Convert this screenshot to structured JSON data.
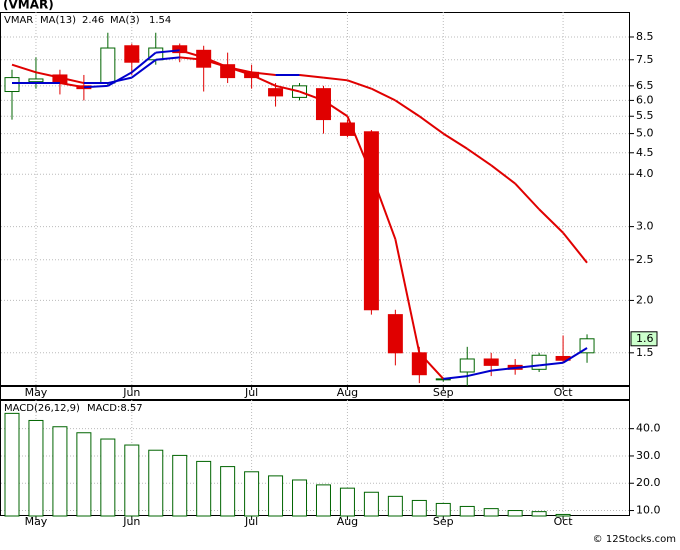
{
  "chart_data": [
    {
      "type": "candlestick",
      "title": "(VMAR)",
      "legend": [
        "VMAR",
        "MA(13)",
        "2.46",
        "MA(3)",
        "1.54"
      ],
      "categories": [
        null,
        "May",
        null,
        null,
        null,
        "Jun",
        null,
        null,
        null,
        null,
        "Jul",
        null,
        null,
        null,
        "Aug",
        null,
        null,
        null,
        "Sep",
        null,
        null,
        null,
        null,
        "Oct",
        null
      ],
      "open": [
        6.3,
        6.65,
        6.9,
        6.5,
        6.6,
        8.1,
        7.5,
        8.1,
        7.9,
        7.3,
        7.0,
        6.4,
        6.1,
        6.4,
        5.3,
        5.05,
        1.85,
        1.5,
        1.3,
        1.35,
        1.45,
        1.4,
        1.37,
        1.47,
        1.5
      ],
      "high": [
        7.1,
        7.6,
        7.1,
        6.9,
        8.7,
        8.2,
        8.7,
        8.2,
        8.1,
        7.8,
        7.3,
        6.6,
        6.6,
        6.5,
        5.4,
        5.1,
        1.9,
        1.55,
        1.31,
        1.55,
        1.5,
        1.45,
        1.5,
        1.65,
        1.66
      ],
      "low": [
        5.4,
        6.4,
        6.2,
        6.0,
        6.5,
        6.9,
        7.3,
        7.4,
        6.3,
        6.6,
        6.4,
        5.8,
        6.0,
        5.0,
        4.9,
        1.85,
        1.4,
        1.27,
        1.28,
        1.25,
        1.32,
        1.33,
        1.35,
        1.42,
        1.42
      ],
      "close": [
        6.8,
        6.75,
        6.6,
        6.4,
        8.0,
        7.4,
        8.0,
        7.8,
        7.2,
        6.8,
        6.8,
        6.15,
        6.5,
        5.4,
        4.95,
        1.9,
        1.5,
        1.33,
        1.3,
        1.45,
        1.4,
        1.37,
        1.48,
        1.44,
        1.62
      ],
      "series": [
        {
          "name": "MA(13)",
          "values": [
            7.3,
            7.0,
            6.8,
            6.6,
            6.6,
            6.8,
            7.5,
            7.6,
            7.5,
            7.2,
            7.0,
            6.9,
            6.9,
            6.8,
            6.7,
            6.4,
            6.0,
            5.5,
            5.0,
            4.6,
            4.2,
            3.8,
            3.3,
            2.9,
            2.46
          ]
        },
        {
          "name": "MA(3)",
          "values": [
            6.6,
            6.6,
            6.6,
            6.45,
            6.5,
            7.0,
            7.8,
            7.9,
            7.6,
            7.2,
            6.9,
            6.5,
            6.3,
            6.0,
            5.5,
            4.0,
            2.8,
            1.5,
            1.3,
            1.32,
            1.36,
            1.38,
            1.4,
            1.42,
            1.54
          ]
        }
      ],
      "up_color": "#006400",
      "down_color": "#e00000",
      "ma_up_color": "#0000cc",
      "ma_down_color": "#e00000",
      "legend_color": "#0000cc",
      "ticker_color": "#008000",
      "last_label": "1.6",
      "last_color": "#ccffcc",
      "log_scale": true,
      "grid": true,
      "ylim": [
        1.25,
        9.75
      ],
      "yticks": [
        8.5,
        7.5,
        6.5,
        {
          "value": 6,
          "label": "6.0"
        },
        5.5,
        {
          "value": 5,
          "label": "5.0"
        },
        4.5,
        {
          "value": 4,
          "label": "4.0"
        },
        {
          "value": 3,
          "label": "3.0"
        },
        2.5,
        {
          "value": 2,
          "label": "2.0"
        },
        1.5
      ]
    },
    {
      "type": "bar",
      "legend": [
        "MACD(26,12,9)",
        "MACD:8.57"
      ],
      "color": "#006400",
      "legend_color": "#0000cc",
      "categories": [
        null,
        "May",
        null,
        null,
        null,
        "Jun",
        null,
        null,
        null,
        null,
        "Jul",
        null,
        null,
        null,
        "Aug",
        null,
        null,
        null,
        "Sep",
        null,
        null,
        null,
        null,
        "Oct",
        null
      ],
      "values": [
        45.6,
        43,
        40.7,
        38.5,
        36.2,
        34,
        32.1,
        30.2,
        28,
        26.1,
        24.2,
        22.7,
        21.2,
        19.4,
        18.2,
        16.7,
        15.2,
        13.7,
        12.6,
        11.5,
        10.7,
        10,
        9.6,
        8.57,
        null
      ],
      "ylim": [
        8,
        50.5
      ],
      "yticks": [
        {
          "value": 40,
          "label": "40.0"
        },
        {
          "value": 30,
          "label": "30.0"
        },
        {
          "value": 20,
          "label": "20.0"
        },
        {
          "value": 10,
          "label": "10.0"
        }
      ],
      "grid": true
    }
  ],
  "footer": "© 12Stocks.com"
}
